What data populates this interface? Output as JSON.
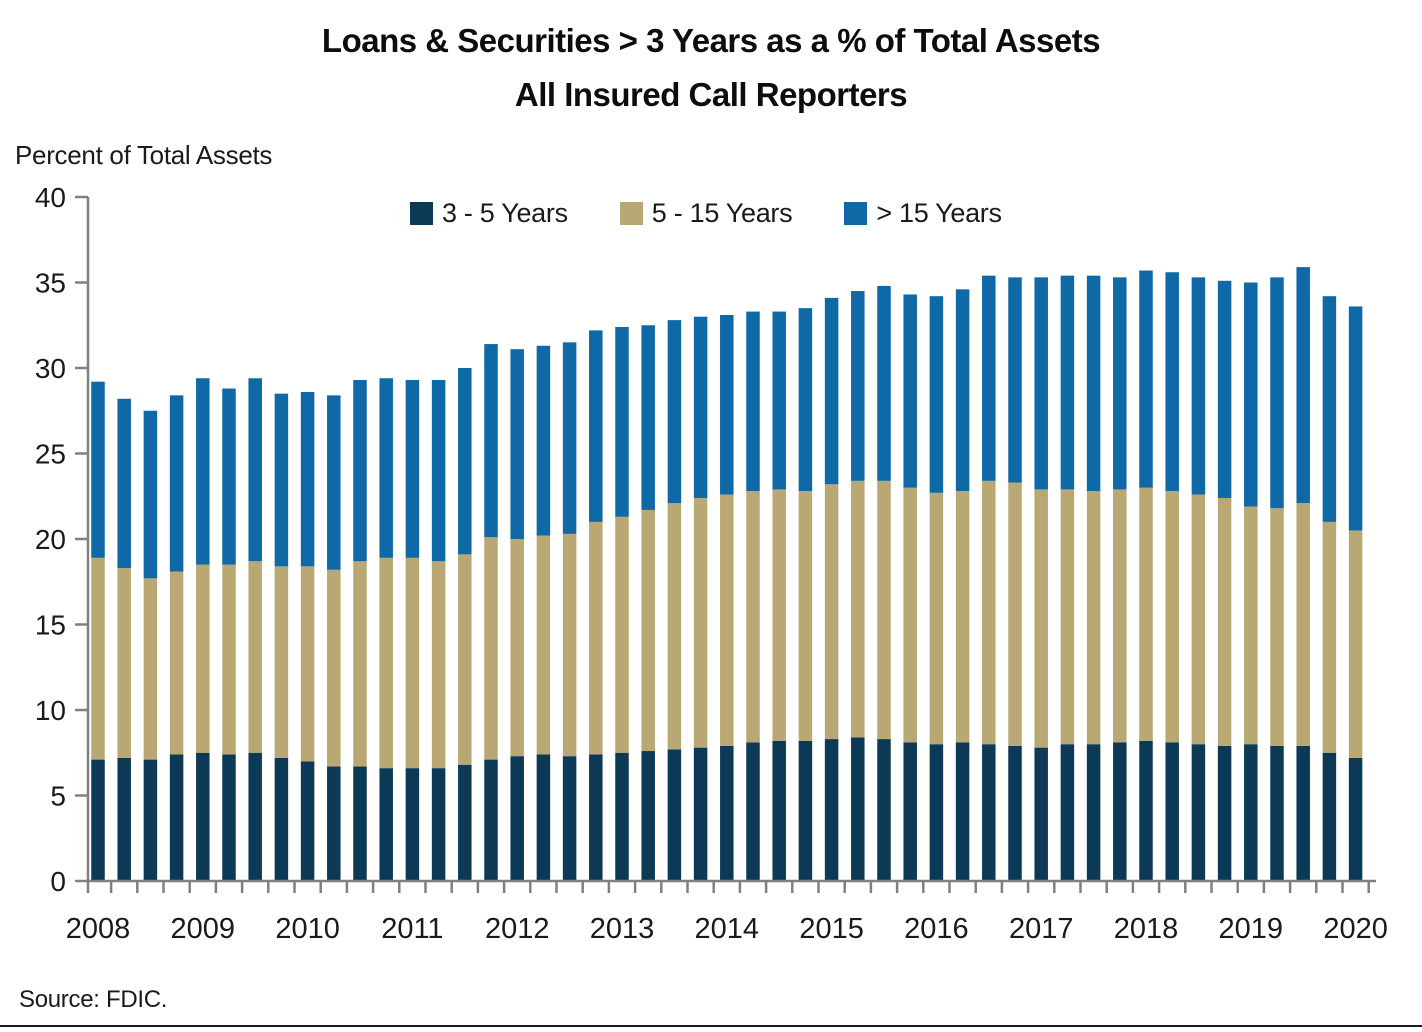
{
  "title_line1": "Loans & Securities > 3 Years as a % of Total Assets",
  "title_line2": "All Insured Call Reporters",
  "y_axis_title": "Percent of Total Assets",
  "source_note": "Source: FDIC.",
  "axis_color": "#808080",
  "text_color": "#1a1a1a",
  "chart_data": {
    "type": "bar",
    "stacked": true,
    "title": "Loans & Securities > 3 Years as a % of Total Assets — All Insured Call Reporters",
    "xlabel": "",
    "ylabel": "Percent of Total Assets",
    "ylim": [
      0,
      40
    ],
    "ytick_step": 5,
    "grid": false,
    "legend_position": "top-inside",
    "x_year_labels": [
      "2008",
      "2009",
      "2010",
      "2011",
      "2012",
      "2013",
      "2014",
      "2015",
      "2016",
      "2017",
      "2018",
      "2019",
      "2020"
    ],
    "categories": [
      "2008 Q1",
      "2008 Q2",
      "2008 Q3",
      "2008 Q4",
      "2009 Q1",
      "2009 Q2",
      "2009 Q3",
      "2009 Q4",
      "2010 Q1",
      "2010 Q2",
      "2010 Q3",
      "2010 Q4",
      "2011 Q1",
      "2011 Q2",
      "2011 Q3",
      "2011 Q4",
      "2012 Q1",
      "2012 Q2",
      "2012 Q3",
      "2012 Q4",
      "2013 Q1",
      "2013 Q2",
      "2013 Q3",
      "2013 Q4",
      "2014 Q1",
      "2014 Q2",
      "2014 Q3",
      "2014 Q4",
      "2015 Q1",
      "2015 Q2",
      "2015 Q3",
      "2015 Q4",
      "2016 Q1",
      "2016 Q2",
      "2016 Q3",
      "2016 Q4",
      "2017 Q1",
      "2017 Q2",
      "2017 Q3",
      "2017 Q4",
      "2018 Q1",
      "2018 Q2",
      "2018 Q3",
      "2018 Q4",
      "2019 Q1",
      "2019 Q2",
      "2019 Q3",
      "2019 Q4",
      "2020 Q1"
    ],
    "series": [
      {
        "name": "3 - 5 Years",
        "color": "#0c3a56",
        "values": [
          7.1,
          7.2,
          7.1,
          7.4,
          7.5,
          7.4,
          7.5,
          7.2,
          7.0,
          6.7,
          6.7,
          6.6,
          6.6,
          6.6,
          6.8,
          7.1,
          7.3,
          7.4,
          7.3,
          7.4,
          7.5,
          7.6,
          7.7,
          7.8,
          7.9,
          8.1,
          8.2,
          8.2,
          8.3,
          8.4,
          8.3,
          8.1,
          8.0,
          8.1,
          8.0,
          7.9,
          7.8,
          8.0,
          8.0,
          8.1,
          8.2,
          8.1,
          8.0,
          7.9,
          8.0,
          7.9,
          7.9,
          7.5,
          7.2
        ]
      },
      {
        "name": "5 - 15 Years",
        "color": "#b9a873",
        "values": [
          11.8,
          11.1,
          10.6,
          10.7,
          11.0,
          11.1,
          11.2,
          11.2,
          11.4,
          11.5,
          12.0,
          12.3,
          12.3,
          12.1,
          12.3,
          13.0,
          12.7,
          12.8,
          13.0,
          13.6,
          13.8,
          14.1,
          14.4,
          14.6,
          14.7,
          14.7,
          14.7,
          14.6,
          14.9,
          15.0,
          15.1,
          14.9,
          14.7,
          14.7,
          15.4,
          15.4,
          15.1,
          14.9,
          14.8,
          14.8,
          14.8,
          14.7,
          14.6,
          14.5,
          13.9,
          13.9,
          14.2,
          13.5,
          13.3
        ]
      },
      {
        "name": "> 15 Years",
        "color": "#0e69a6",
        "values": [
          10.3,
          9.9,
          9.8,
          10.3,
          10.9,
          10.3,
          10.7,
          10.1,
          10.2,
          10.2,
          10.6,
          10.5,
          10.4,
          10.6,
          10.9,
          11.3,
          11.1,
          11.1,
          11.2,
          11.2,
          11.1,
          10.8,
          10.7,
          10.6,
          10.5,
          10.5,
          10.4,
          10.7,
          10.9,
          11.1,
          11.4,
          11.3,
          11.5,
          11.8,
          12.0,
          12.0,
          12.4,
          12.5,
          12.6,
          12.4,
          12.7,
          12.8,
          12.7,
          12.7,
          13.1,
          13.5,
          13.8,
          13.2,
          13.1
        ]
      }
    ]
  }
}
